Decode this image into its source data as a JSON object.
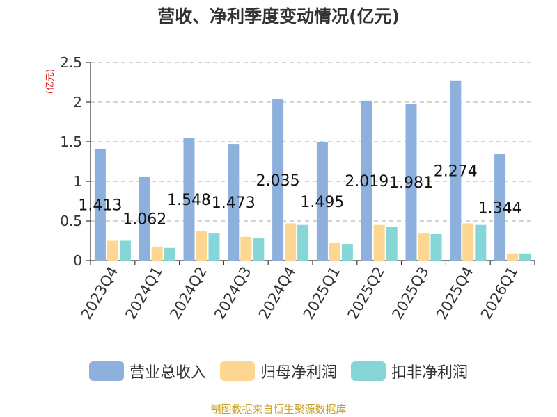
{
  "chart_data": {
    "type": "bar",
    "title": "营收、净利季度变动情况(亿元)",
    "ylabel": "(亿元)",
    "xlabel": "",
    "ylim": [
      0,
      2.5
    ],
    "yticks": [
      "0",
      "0.5",
      "1",
      "1.5",
      "2",
      "2.5"
    ],
    "grid": true,
    "legend_position": "bottom",
    "categories": [
      "2023Q4",
      "2024Q1",
      "2024Q2",
      "2024Q3",
      "2024Q4",
      "2025Q1",
      "2025Q2",
      "2025Q3",
      "2025Q4",
      "2026Q1"
    ],
    "series": [
      {
        "name": "营业总收入",
        "color": "#8eb0dc",
        "values": [
          1.413,
          1.062,
          1.548,
          1.473,
          2.035,
          1.495,
          2.019,
          1.981,
          2.274,
          1.344
        ],
        "labels": [
          "1.413",
          "1.062",
          "1.548",
          "1.473",
          "2.035",
          "1.495",
          "2.019",
          "1.981",
          "2.274",
          "1.344"
        ]
      },
      {
        "name": "归母净利润",
        "color": "#fdd792",
        "values": [
          0.25,
          0.17,
          0.37,
          0.3,
          0.47,
          0.22,
          0.45,
          0.35,
          0.47,
          0.09
        ]
      },
      {
        "name": "扣非净利润",
        "color": "#86d6d8",
        "values": [
          0.25,
          0.16,
          0.35,
          0.28,
          0.45,
          0.21,
          0.43,
          0.34,
          0.45,
          0.09
        ]
      }
    ]
  },
  "footer": {
    "source": "制图数据来自恒生聚源数据库"
  }
}
